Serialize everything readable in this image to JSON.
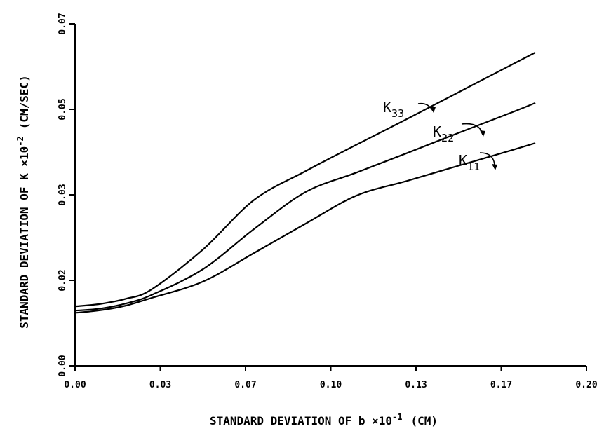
{
  "chart_data": {
    "type": "line",
    "xlabel": "STANDARD DEVIATION OF b ×10",
    "xlabel_exp": "-1",
    "xlabel_unit": "(CM)",
    "ylabel": "STANDARD DEVIATION OF K ×10",
    "ylabel_exp": "-2",
    "ylabel_unit": "(CM/SEC)",
    "x_ticks": [
      "0.00",
      "0.03",
      "0.07",
      "0.10",
      "0.13",
      "0.17",
      "0.20"
    ],
    "y_ticks": [
      "0.00",
      "0.02",
      "0.03",
      "0.05",
      "0.07"
    ],
    "xlim": [
      0.0,
      0.2
    ],
    "ylim": [
      0.0,
      0.07
    ],
    "grid": false,
    "series": [
      {
        "name": "K33",
        "label_main": "K",
        "label_sub": "33",
        "x": [
          0.0,
          0.01,
          0.02,
          0.03,
          0.05,
          0.07,
          0.09,
          0.11,
          0.13,
          0.15,
          0.17,
          0.18
        ],
        "y": [
          0.0139,
          0.0145,
          0.0157,
          0.0179,
          0.0236,
          0.0294,
          0.0355,
          0.0417,
          0.0478,
          0.054,
          0.0602,
          0.0633
        ]
      },
      {
        "name": "K22",
        "label_main": "K",
        "label_sub": "22",
        "x": [
          0.0,
          0.01,
          0.02,
          0.03,
          0.05,
          0.07,
          0.09,
          0.11,
          0.13,
          0.15,
          0.17,
          0.18
        ],
        "y": [
          0.0129,
          0.0134,
          0.0146,
          0.0166,
          0.0213,
          0.026,
          0.0306,
          0.0352,
          0.0398,
          0.0445,
          0.0491,
          0.0515
        ]
      },
      {
        "name": "K11",
        "label_main": "K",
        "label_sub": "11",
        "x": [
          0.0,
          0.01,
          0.02,
          0.03,
          0.05,
          0.07,
          0.09,
          0.11,
          0.13,
          0.15,
          0.17,
          0.18
        ],
        "y": [
          0.0124,
          0.013,
          0.0141,
          0.0159,
          0.0197,
          0.0232,
          0.0266,
          0.0299,
          0.0333,
          0.0368,
          0.0403,
          0.0421
        ]
      }
    ]
  }
}
